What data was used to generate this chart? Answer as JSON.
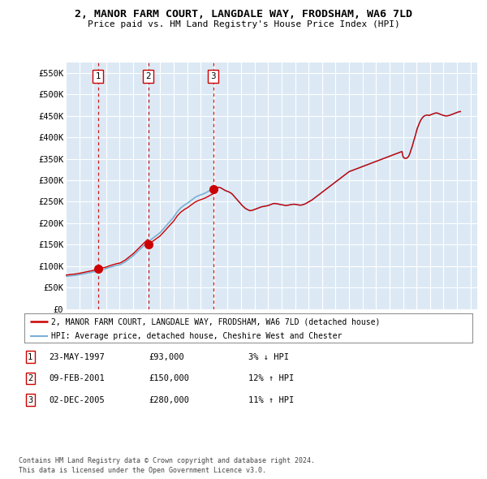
{
  "title": "2, MANOR FARM COURT, LANGDALE WAY, FRODSHAM, WA6 7LD",
  "subtitle": "Price paid vs. HM Land Registry's House Price Index (HPI)",
  "yticks": [
    0,
    50000,
    100000,
    150000,
    200000,
    250000,
    300000,
    350000,
    400000,
    450000,
    500000,
    550000
  ],
  "ytick_labels": [
    "£0",
    "£50K",
    "£100K",
    "£150K",
    "£200K",
    "£250K",
    "£300K",
    "£350K",
    "£400K",
    "£450K",
    "£500K",
    "£550K"
  ],
  "xlim_start": 1995.0,
  "xlim_end": 2025.5,
  "ylim_min": 0,
  "ylim_max": 575000,
  "background_color": "#dce9f5",
  "grid_color": "#ffffff",
  "sale_line_color": "#cc0000",
  "hpi_line_color": "#7bafd4",
  "sale_marker_color": "#cc0000",
  "vline_color": "#cc0000",
  "sale_label": "2, MANOR FARM COURT, LANGDALE WAY, FRODSHAM, WA6 7LD (detached house)",
  "hpi_label": "HPI: Average price, detached house, Cheshire West and Chester",
  "transactions": [
    {
      "num": 1,
      "date": "23-MAY-1997",
      "year": 1997.39,
      "price": 93000,
      "pct": "3%",
      "dir": "↓"
    },
    {
      "num": 2,
      "date": "09-FEB-2001",
      "year": 2001.11,
      "price": 150000,
      "pct": "12%",
      "dir": "↑"
    },
    {
      "num": 3,
      "date": "02-DEC-2005",
      "year": 2005.92,
      "price": 280000,
      "pct": "11%",
      "dir": "↑"
    }
  ],
  "hpi_years": [
    1995.0,
    1995.08,
    1995.17,
    1995.25,
    1995.33,
    1995.42,
    1995.5,
    1995.58,
    1995.67,
    1995.75,
    1995.83,
    1995.92,
    1996.0,
    1996.08,
    1996.17,
    1996.25,
    1996.33,
    1996.42,
    1996.5,
    1996.58,
    1996.67,
    1996.75,
    1996.83,
    1996.92,
    1997.0,
    1997.08,
    1997.17,
    1997.25,
    1997.33,
    1997.42,
    1997.5,
    1997.58,
    1997.67,
    1997.75,
    1997.83,
    1997.92,
    1998.0,
    1998.08,
    1998.17,
    1998.25,
    1998.33,
    1998.42,
    1998.5,
    1998.58,
    1998.67,
    1998.75,
    1998.83,
    1998.92,
    1999.0,
    1999.08,
    1999.17,
    1999.25,
    1999.33,
    1999.42,
    1999.5,
    1999.58,
    1999.67,
    1999.75,
    1999.83,
    1999.92,
    2000.0,
    2000.08,
    2000.17,
    2000.25,
    2000.33,
    2000.42,
    2000.5,
    2000.58,
    2000.67,
    2000.75,
    2000.83,
    2000.92,
    2001.0,
    2001.08,
    2001.17,
    2001.25,
    2001.33,
    2001.42,
    2001.5,
    2001.58,
    2001.67,
    2001.75,
    2001.83,
    2001.92,
    2002.0,
    2002.08,
    2002.17,
    2002.25,
    2002.33,
    2002.42,
    2002.5,
    2002.58,
    2002.67,
    2002.75,
    2002.83,
    2002.92,
    2003.0,
    2003.08,
    2003.17,
    2003.25,
    2003.33,
    2003.42,
    2003.5,
    2003.58,
    2003.67,
    2003.75,
    2003.83,
    2003.92,
    2004.0,
    2004.08,
    2004.17,
    2004.25,
    2004.33,
    2004.42,
    2004.5,
    2004.58,
    2004.67,
    2004.75,
    2004.83,
    2004.92,
    2005.0,
    2005.08,
    2005.17,
    2005.25,
    2005.33,
    2005.42,
    2005.5,
    2005.58,
    2005.67,
    2005.75,
    2005.83,
    2005.92,
    2006.0,
    2006.08,
    2006.17,
    2006.25,
    2006.33,
    2006.42,
    2006.5,
    2006.58,
    2006.67,
    2006.75,
    2006.83,
    2006.92,
    2007.0,
    2007.08,
    2007.17,
    2007.25,
    2007.33,
    2007.42,
    2007.5,
    2007.58,
    2007.67,
    2007.75,
    2007.83,
    2007.92,
    2008.0,
    2008.08,
    2008.17,
    2008.25,
    2008.33,
    2008.42,
    2008.5,
    2008.58,
    2008.67,
    2008.75,
    2008.83,
    2008.92,
    2009.0,
    2009.08,
    2009.17,
    2009.25,
    2009.33,
    2009.42,
    2009.5,
    2009.58,
    2009.67,
    2009.75,
    2009.83,
    2009.92,
    2010.0,
    2010.08,
    2010.17,
    2010.25,
    2010.33,
    2010.42,
    2010.5,
    2010.58,
    2010.67,
    2010.75,
    2010.83,
    2010.92,
    2011.0,
    2011.08,
    2011.17,
    2011.25,
    2011.33,
    2011.42,
    2011.5,
    2011.58,
    2011.67,
    2011.75,
    2011.83,
    2011.92,
    2012.0,
    2012.08,
    2012.17,
    2012.25,
    2012.33,
    2012.42,
    2012.5,
    2012.58,
    2012.67,
    2012.75,
    2012.83,
    2012.92,
    2013.0,
    2013.08,
    2013.17,
    2013.25,
    2013.33,
    2013.42,
    2013.5,
    2013.58,
    2013.67,
    2013.75,
    2013.83,
    2013.92,
    2014.0,
    2014.08,
    2014.17,
    2014.25,
    2014.33,
    2014.42,
    2014.5,
    2014.58,
    2014.67,
    2014.75,
    2014.83,
    2014.92,
    2015.0,
    2015.08,
    2015.17,
    2015.25,
    2015.33,
    2015.42,
    2015.5,
    2015.58,
    2015.67,
    2015.75,
    2015.83,
    2015.92,
    2016.0,
    2016.08,
    2016.17,
    2016.25,
    2016.33,
    2016.42,
    2016.5,
    2016.58,
    2016.67,
    2016.75,
    2016.83,
    2016.92,
    2017.0,
    2017.08,
    2017.17,
    2017.25,
    2017.33,
    2017.42,
    2017.5,
    2017.58,
    2017.67,
    2017.75,
    2017.83,
    2017.92,
    2018.0,
    2018.08,
    2018.17,
    2018.25,
    2018.33,
    2018.42,
    2018.5,
    2018.58,
    2018.67,
    2018.75,
    2018.83,
    2018.92,
    2019.0,
    2019.08,
    2019.17,
    2019.25,
    2019.33,
    2019.42,
    2019.5,
    2019.58,
    2019.67,
    2019.75,
    2019.83,
    2019.92,
    2020.0,
    2020.08,
    2020.17,
    2020.25,
    2020.33,
    2020.42,
    2020.5,
    2020.58,
    2020.67,
    2020.75,
    2020.83,
    2020.92,
    2021.0,
    2021.08,
    2021.17,
    2021.25,
    2021.33,
    2021.42,
    2021.5,
    2021.58,
    2021.67,
    2021.75,
    2021.83,
    2021.92,
    2022.0,
    2022.08,
    2022.17,
    2022.25,
    2022.33,
    2022.42,
    2022.5,
    2022.58,
    2022.67,
    2022.75,
    2022.83,
    2022.92,
    2023.0,
    2023.08,
    2023.17,
    2023.25,
    2023.33,
    2023.42,
    2023.5,
    2023.58,
    2023.67,
    2023.75,
    2023.83,
    2023.92,
    2024.0,
    2024.08,
    2024.17,
    2024.25
  ],
  "hpi_values": [
    76000,
    76200,
    76500,
    77000,
    77200,
    77500,
    77800,
    78000,
    78300,
    78700,
    79000,
    79500,
    80000,
    80500,
    81000,
    81500,
    82000,
    82500,
    83000,
    83500,
    84000,
    84500,
    85000,
    85500,
    86000,
    86800,
    87500,
    88200,
    89000,
    89800,
    90500,
    91200,
    92000,
    92500,
    93000,
    93200,
    94000,
    95000,
    96000,
    97000,
    97800,
    98500,
    99200,
    100000,
    100800,
    101500,
    102000,
    102500,
    103000,
    104000,
    105500,
    107000,
    108500,
    110000,
    112000,
    114000,
    116000,
    118000,
    120000,
    122000,
    124000,
    126500,
    129000,
    131500,
    134000,
    136500,
    139000,
    141500,
    144000,
    146500,
    149000,
    151500,
    154000,
    156000,
    158000,
    160000,
    162000,
    164000,
    166000,
    168000,
    170000,
    172000,
    174000,
    176000,
    178000,
    181000,
    184000,
    187000,
    190000,
    193000,
    196000,
    199000,
    202000,
    205000,
    208000,
    211000,
    214000,
    218000,
    222000,
    226000,
    229000,
    232000,
    235000,
    237000,
    239000,
    241000,
    243000,
    244500,
    246000,
    248000,
    250000,
    252000,
    254000,
    256000,
    258000,
    260000,
    261500,
    263000,
    264000,
    265000,
    266000,
    267000,
    268000,
    269000,
    270000,
    271500,
    273000,
    274500,
    276000,
    277500,
    279000,
    280000,
    281000,
    282000,
    282500,
    283000,
    283500,
    283000,
    282000,
    280500,
    279000,
    277500,
    276000,
    275000,
    274000,
    273000,
    271500,
    270000,
    268000,
    265000,
    262000,
    259000,
    256000,
    253000,
    250000,
    247000,
    244000,
    241000,
    238500,
    236000,
    234000,
    232500,
    231000,
    230000,
    229000,
    229500,
    230000,
    231000,
    232000,
    233000,
    234000,
    235000,
    236000,
    237000,
    238000,
    238500,
    239000,
    239500,
    240000,
    240500,
    241000,
    242000,
    243000,
    244000,
    245000,
    245500,
    246000,
    245500,
    245000,
    244500,
    244000,
    243500,
    243000,
    242500,
    242000,
    241500,
    241000,
    241500,
    242000,
    242500,
    243000,
    243500,
    244000,
    244000,
    244000,
    243500,
    243000,
    242500,
    242000,
    242000,
    242500,
    243000,
    244000,
    245000,
    246500,
    248000,
    249500,
    251000,
    252500,
    254000,
    256000,
    258000,
    260000,
    262000,
    264000,
    266000,
    268000,
    270000,
    272000,
    274000,
    276000,
    278000,
    280000,
    282000,
    284000,
    286000,
    288000,
    290000,
    292000,
    294000,
    296000,
    298000,
    300000,
    302000,
    304000,
    306000,
    308000,
    310000,
    312000,
    314000,
    316000,
    318000,
    320000,
    321000,
    322000,
    323000,
    324000,
    325000,
    326000,
    327000,
    328000,
    329000,
    330000,
    331000,
    332000,
    333000,
    334000,
    335000,
    336000,
    337000,
    338000,
    339000,
    340000,
    341000,
    342000,
    343000,
    344000,
    345000,
    346000,
    347000,
    348000,
    349000,
    350000,
    351000,
    352000,
    353000,
    354000,
    355000,
    356000,
    357000,
    358000,
    359000,
    360000,
    361000,
    362000,
    363000,
    364000,
    365000,
    366000,
    367000,
    355000,
    352000,
    351000,
    351000,
    353000,
    356000,
    362000,
    370000,
    378000,
    387000,
    396000,
    405000,
    415000,
    423000,
    430000,
    436000,
    441000,
    445000,
    448000,
    450000,
    451000,
    452000,
    452000,
    451000,
    452000,
    453000,
    454000,
    455000,
    456000,
    456500,
    457000,
    456000,
    455000,
    454000,
    453000,
    452000,
    451000,
    450500,
    450000,
    450000,
    450500,
    451000,
    452000,
    453000,
    454000,
    455000,
    456000,
    457000,
    458000,
    459000,
    460000,
    460000
  ],
  "footnote1": "Contains HM Land Registry data © Crown copyright and database right 2024.",
  "footnote2": "This data is licensed under the Open Government Licence v3.0."
}
